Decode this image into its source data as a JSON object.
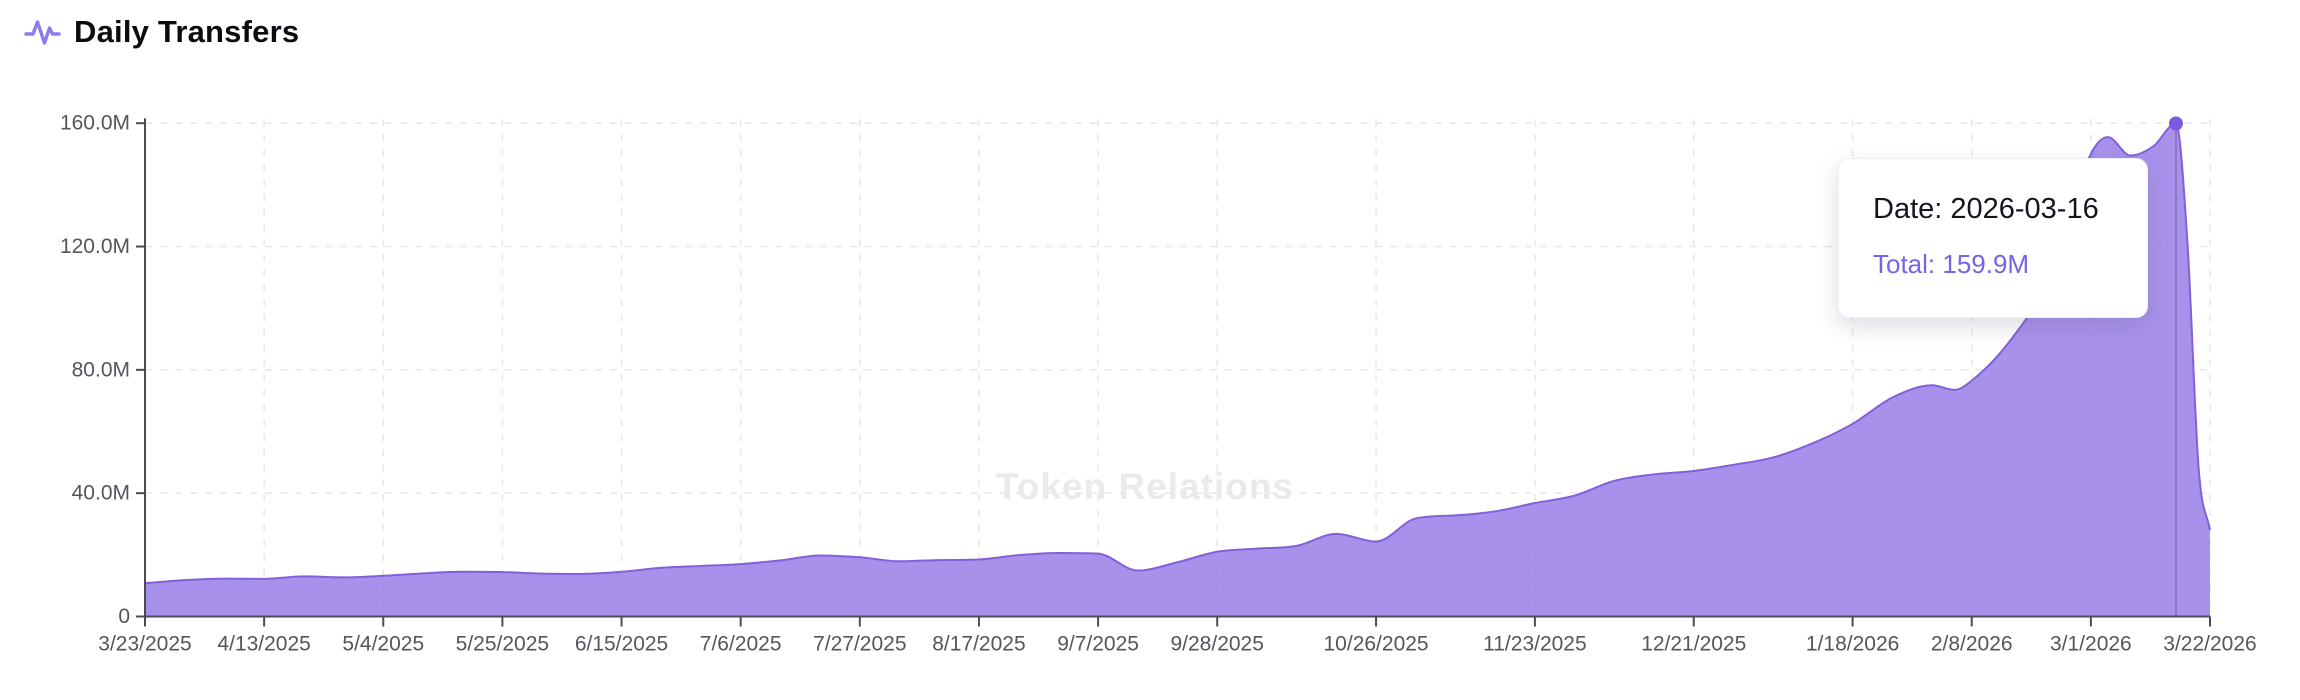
{
  "header": {
    "title": "Daily Transfers"
  },
  "watermark": "Token Relations",
  "tooltip": {
    "date_line": "Date: 2026-03-16",
    "total_line": "Total: 159.9M",
    "date": "2026-03-16",
    "total": "159.9M"
  },
  "chart_data": {
    "type": "area",
    "title": "Daily Transfers",
    "series_name": "Total",
    "ylabel": "",
    "xlabel": "",
    "unit": "millions of transfers per day",
    "x_range": [
      "2025-03-23",
      "2026-03-22"
    ],
    "ylim_millions": [
      0,
      160
    ],
    "grid": "dashed-both-axes",
    "legend": "none",
    "y_ticks": [
      {
        "value_millions": 0,
        "label": "0"
      },
      {
        "value_millions": 40,
        "label": "40.0M"
      },
      {
        "value_millions": 80,
        "label": "80.0M"
      },
      {
        "value_millions": 120,
        "label": "120.0M"
      },
      {
        "value_millions": 160,
        "label": "160.0M"
      }
    ],
    "x_ticks": [
      {
        "date": "2025-03-23",
        "label": "3/23/2025"
      },
      {
        "date": "2025-04-13",
        "label": "4/13/2025"
      },
      {
        "date": "2025-05-04",
        "label": "5/4/2025"
      },
      {
        "date": "2025-05-25",
        "label": "5/25/2025"
      },
      {
        "date": "2025-06-15",
        "label": "6/15/2025"
      },
      {
        "date": "2025-07-06",
        "label": "7/6/2025"
      },
      {
        "date": "2025-07-27",
        "label": "7/27/2025"
      },
      {
        "date": "2025-08-17",
        "label": "8/17/2025"
      },
      {
        "date": "2025-09-07",
        "label": "9/7/2025"
      },
      {
        "date": "2025-09-28",
        "label": "9/28/2025"
      },
      {
        "date": "2025-10-26",
        "label": "10/26/2025"
      },
      {
        "date": "2025-11-23",
        "label": "11/23/2025"
      },
      {
        "date": "2025-12-21",
        "label": "12/21/2025"
      },
      {
        "date": "2026-01-18",
        "label": "1/18/2026"
      },
      {
        "date": "2026-02-08",
        "label": "2/8/2026"
      },
      {
        "date": "2026-03-01",
        "label": "3/1/2026"
      },
      {
        "date": "2026-03-22",
        "label": "3/22/2026"
      }
    ],
    "points": [
      {
        "date": "2025-03-23",
        "value_millions": 10.8
      },
      {
        "date": "2025-03-30",
        "value_millions": 11.8
      },
      {
        "date": "2025-04-06",
        "value_millions": 12.3
      },
      {
        "date": "2025-04-13",
        "value_millions": 12.2
      },
      {
        "date": "2025-04-20",
        "value_millions": 13.0
      },
      {
        "date": "2025-04-27",
        "value_millions": 12.7
      },
      {
        "date": "2025-05-04",
        "value_millions": 13.2
      },
      {
        "date": "2025-05-11",
        "value_millions": 14.0
      },
      {
        "date": "2025-05-18",
        "value_millions": 14.5
      },
      {
        "date": "2025-05-25",
        "value_millions": 14.4
      },
      {
        "date": "2025-06-01",
        "value_millions": 13.9
      },
      {
        "date": "2025-06-08",
        "value_millions": 13.8
      },
      {
        "date": "2025-06-15",
        "value_millions": 14.5
      },
      {
        "date": "2025-06-22",
        "value_millions": 15.8
      },
      {
        "date": "2025-06-29",
        "value_millions": 16.4
      },
      {
        "date": "2025-07-06",
        "value_millions": 17.0
      },
      {
        "date": "2025-07-13",
        "value_millions": 18.2
      },
      {
        "date": "2025-07-20",
        "value_millions": 19.8
      },
      {
        "date": "2025-07-27",
        "value_millions": 19.2
      },
      {
        "date": "2025-08-03",
        "value_millions": 17.9
      },
      {
        "date": "2025-08-10",
        "value_millions": 18.3
      },
      {
        "date": "2025-08-17",
        "value_millions": 18.5
      },
      {
        "date": "2025-08-24",
        "value_millions": 19.9
      },
      {
        "date": "2025-08-31",
        "value_millions": 20.6
      },
      {
        "date": "2025-09-07",
        "value_millions": 20.4
      },
      {
        "date": "2025-09-14",
        "value_millions": 14.9
      },
      {
        "date": "2025-09-21",
        "value_millions": 17.6
      },
      {
        "date": "2025-09-28",
        "value_millions": 21.0
      },
      {
        "date": "2025-10-05",
        "value_millions": 22.0
      },
      {
        "date": "2025-10-12",
        "value_millions": 22.9
      },
      {
        "date": "2025-10-19",
        "value_millions": 26.8
      },
      {
        "date": "2025-10-26",
        "value_millions": 24.3
      },
      {
        "date": "2025-11-02",
        "value_millions": 31.8
      },
      {
        "date": "2025-11-09",
        "value_millions": 32.8
      },
      {
        "date": "2025-11-16",
        "value_millions": 34.1
      },
      {
        "date": "2025-11-23",
        "value_millions": 36.8
      },
      {
        "date": "2025-11-30",
        "value_millions": 39.2
      },
      {
        "date": "2025-12-07",
        "value_millions": 44.0
      },
      {
        "date": "2025-12-14",
        "value_millions": 46.1
      },
      {
        "date": "2025-12-21",
        "value_millions": 47.2
      },
      {
        "date": "2025-12-28",
        "value_millions": 49.2
      },
      {
        "date": "2026-01-04",
        "value_millions": 51.6
      },
      {
        "date": "2026-01-11",
        "value_millions": 56.2
      },
      {
        "date": "2026-01-18",
        "value_millions": 62.5
      },
      {
        "date": "2026-01-25",
        "value_millions": 71.0
      },
      {
        "date": "2026-02-01",
        "value_millions": 75.0
      },
      {
        "date": "2026-02-05",
        "value_millions": 73.5
      },
      {
        "date": "2026-02-08",
        "value_millions": 76.5
      },
      {
        "date": "2026-02-15",
        "value_millions": 90.0
      },
      {
        "date": "2026-02-22",
        "value_millions": 111.0
      },
      {
        "date": "2026-03-01",
        "value_millions": 150.0
      },
      {
        "date": "2026-03-04",
        "value_millions": 155.5
      },
      {
        "date": "2026-03-08",
        "value_millions": 149.5
      },
      {
        "date": "2026-03-12",
        "value_millions": 152.5
      },
      {
        "date": "2026-03-16",
        "value_millions": 159.9
      },
      {
        "date": "2026-03-18",
        "value_millions": 122.0
      },
      {
        "date": "2026-03-20",
        "value_millions": 48.0
      },
      {
        "date": "2026-03-22",
        "value_millions": 28.0
      }
    ],
    "highlight": {
      "date": "2026-03-16",
      "value_millions": 159.9
    },
    "colors": {
      "area_fill": "#9c82e8",
      "line": "#8161d9",
      "marker": "#7b59e0",
      "crosshair": "#5a4a8c",
      "grid": "#e6e6eb",
      "axis": "#4b4b55",
      "tick_label": "#55555e",
      "title": "#0b0b10",
      "tooltip_date_text": "#15151f",
      "tooltip_total_text": "#7a62e8",
      "watermark": "#e9eaee",
      "icon": "#8b7cf0"
    }
  }
}
